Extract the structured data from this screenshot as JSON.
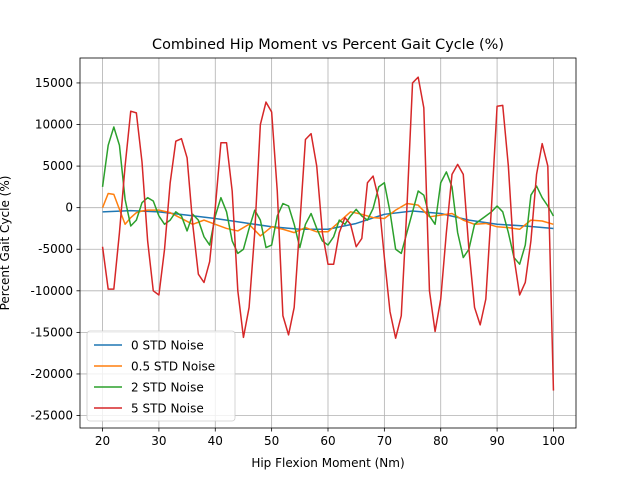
{
  "chart_data": {
    "type": "line",
    "title": "Combined Hip Moment vs Percent Gait Cycle (%)",
    "xlabel": "Hip Flexion Moment (Nm)",
    "ylabel": "Percent Gait Cycle (%)",
    "xlim": [
      16,
      104
    ],
    "ylim": [
      -26500,
      18000
    ],
    "xticks": [
      20,
      30,
      40,
      50,
      60,
      70,
      80,
      90,
      100
    ],
    "yticks": [
      -25000,
      -20000,
      -15000,
      -10000,
      -5000,
      0,
      5000,
      10000,
      15000
    ],
    "grid": true,
    "legend_position": "lower-left",
    "series": [
      {
        "name": "0 STD Noise",
        "color": "#1f77b4",
        "x": [
          20,
          25,
          30,
          35,
          40,
          45,
          50,
          55,
          60,
          65,
          70,
          75,
          80,
          85,
          90,
          95,
          100
        ],
        "y": [
          -500,
          -350,
          -500,
          -900,
          -1300,
          -1800,
          -2300,
          -2600,
          -2600,
          -1900,
          -800,
          -400,
          -700,
          -1500,
          -2000,
          -2200,
          -2500
        ]
      },
      {
        "name": "0.5 STD Noise",
        "color": "#ff7f0e",
        "x": [
          20,
          21,
          22,
          23,
          24,
          25,
          26,
          27,
          28,
          30,
          32,
          34,
          36,
          38,
          40,
          42,
          44,
          46,
          48,
          50,
          52,
          54,
          56,
          58,
          60,
          62,
          64,
          66,
          68,
          70,
          72,
          74,
          76,
          78,
          80,
          82,
          84,
          86,
          88,
          90,
          92,
          94,
          96,
          98,
          100
        ],
        "y": [
          0,
          1700,
          1600,
          -200,
          -2000,
          -1200,
          -600,
          -400,
          -300,
          -300,
          -600,
          -1300,
          -2000,
          -1500,
          -2000,
          -2500,
          -2800,
          -2000,
          -3400,
          -2300,
          -2600,
          -3000,
          -2400,
          -2900,
          -2900,
          -1700,
          -500,
          -800,
          -1200,
          -1300,
          -300,
          500,
          300,
          -1100,
          -900,
          -700,
          -1500,
          -2000,
          -1900,
          -2300,
          -2400,
          -2600,
          -1500,
          -1600,
          -2000
        ]
      },
      {
        "name": "2 STD Noise",
        "color": "#2ca02c",
        "x": [
          20,
          21,
          22,
          23,
          24,
          25,
          26,
          27,
          28,
          29,
          30,
          31,
          32,
          33,
          34,
          35,
          36,
          37,
          38,
          39,
          40,
          41,
          42,
          43,
          44,
          45,
          46,
          47,
          48,
          49,
          50,
          51,
          52,
          53,
          54,
          55,
          56,
          57,
          58,
          59,
          60,
          61,
          62,
          63,
          64,
          65,
          66,
          67,
          68,
          69,
          70,
          71,
          72,
          73,
          74,
          75,
          76,
          77,
          78,
          79,
          80,
          81,
          82,
          83,
          84,
          85,
          86,
          87,
          88,
          89,
          90,
          91,
          92,
          93,
          94,
          95,
          96,
          97,
          98,
          99,
          100
        ],
        "y": [
          2500,
          7500,
          9700,
          7500,
          1000,
          -2200,
          -1500,
          600,
          1200,
          800,
          -1000,
          -2000,
          -1500,
          -500,
          -1000,
          -2800,
          -800,
          -1500,
          -3500,
          -4500,
          -1000,
          1200,
          -500,
          -4000,
          -5500,
          -5000,
          -2500,
          -300,
          -1500,
          -4800,
          -4500,
          -1000,
          500,
          200,
          -2000,
          -4800,
          -2000,
          -700,
          -2500,
          -4000,
          -4500,
          -3500,
          -1500,
          -2000,
          -1000,
          -200,
          -1000,
          -1500,
          -100,
          2500,
          3000,
          -500,
          -5000,
          -5500,
          -3000,
          -500,
          2000,
          1500,
          -1000,
          -2000,
          3000,
          4300,
          2500,
          -3000,
          -6000,
          -5000,
          -2000,
          -1500,
          -1000,
          -500,
          200,
          -500,
          -3000,
          -6000,
          -6800,
          -4500,
          1500,
          2600,
          1200,
          200,
          -1000
        ]
      },
      {
        "name": "5 STD Noise",
        "color": "#d62728",
        "x": [
          20,
          21,
          22,
          23,
          24,
          25,
          26,
          27,
          28,
          29,
          30,
          31,
          32,
          33,
          34,
          35,
          36,
          37,
          38,
          39,
          40,
          41,
          42,
          43,
          44,
          45,
          46,
          47,
          48,
          49,
          50,
          51,
          52,
          53,
          54,
          55,
          56,
          57,
          58,
          59,
          60,
          61,
          62,
          63,
          64,
          65,
          66,
          67,
          68,
          69,
          70,
          71,
          72,
          73,
          74,
          75,
          76,
          77,
          78,
          79,
          80,
          81,
          82,
          83,
          84,
          85,
          86,
          87,
          88,
          89,
          90,
          91,
          92,
          93,
          94,
          95,
          96,
          97,
          98,
          99,
          100
        ],
        "y": [
          -4700,
          -9800,
          -9800,
          -3000,
          5000,
          11600,
          11400,
          5500,
          -4000,
          -10000,
          -10500,
          -5000,
          3000,
          8000,
          8300,
          6000,
          -2000,
          -8000,
          -9000,
          -6500,
          0,
          7800,
          7800,
          2000,
          -10000,
          -15600,
          -12000,
          -3000,
          10000,
          12700,
          11500,
          2000,
          -13000,
          -15300,
          -12000,
          -2000,
          8200,
          8900,
          5000,
          -3000,
          -6800,
          -6800,
          -3000,
          -1200,
          -2000,
          -4700,
          -3700,
          3000,
          3800,
          1000,
          -6000,
          -12500,
          -15700,
          -13000,
          0,
          15000,
          15700,
          12000,
          -10000,
          -14900,
          -11000,
          -3000,
          4000,
          5200,
          4000,
          -5000,
          -12000,
          -14100,
          -11000,
          0,
          12200,
          12300,
          5000,
          -6000,
          -10500,
          -9000,
          -4000,
          4000,
          7700,
          5000,
          -22000
        ]
      }
    ]
  }
}
